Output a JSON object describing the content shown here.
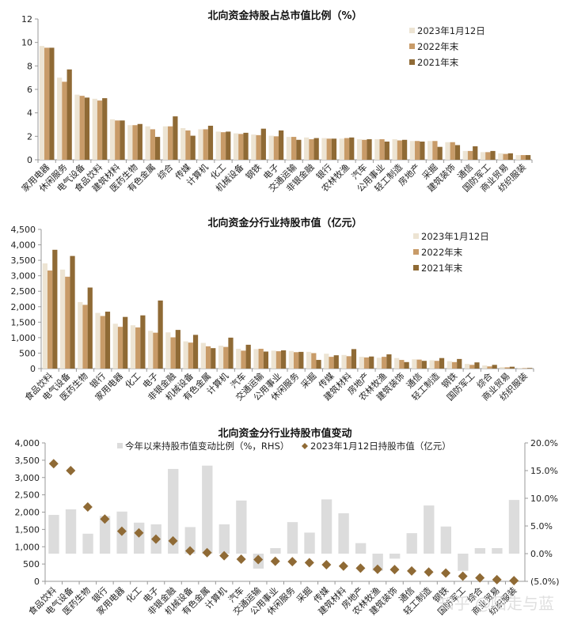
{
  "colors": {
    "c2023": "#EDE4D3",
    "c2022": "#C89B68",
    "c2021": "#8F6A35",
    "change_bar": "#DCDCDC",
    "diamond": "#8F6A35",
    "axis": "#999999"
  },
  "chart_data": [
    {
      "type": "bar",
      "title": "北向资金持股占总市值比例（%）",
      "xlabel": "",
      "ylabel": "",
      "ylim": [
        0,
        12
      ],
      "yticks": [
        "0",
        "2",
        "4",
        "6",
        "8",
        "10",
        "12"
      ],
      "legend_position": "top-right",
      "grid": false,
      "categories": [
        "家用电器",
        "休闲服务",
        "电气设备",
        "食品饮料",
        "建筑材料",
        "医药生物",
        "有色金属",
        "综合",
        "传媒",
        "计算机",
        "化工",
        "机械设备",
        "钢铁",
        "电子",
        "交通运输",
        "非银金融",
        "银行",
        "农林牧渔",
        "汽车",
        "公用事业",
        "轻工制造",
        "房地产",
        "采掘",
        "建筑装饰",
        "通信",
        "国防军工",
        "商业贸易",
        "纺织服装"
      ],
      "series": [
        {
          "name": "2023年1月12日",
          "values": [
            9.7,
            7.0,
            5.55,
            5.2,
            3.45,
            2.95,
            2.85,
            2.85,
            2.7,
            2.6,
            2.4,
            2.25,
            2.15,
            2.05,
            1.95,
            1.9,
            1.85,
            1.8,
            1.75,
            1.75,
            1.75,
            1.6,
            1.6,
            1.5,
            0.75,
            0.65,
            0.55,
            0.4
          ]
        },
        {
          "name": "2022年末",
          "values": [
            9.55,
            6.65,
            5.45,
            5.05,
            3.35,
            2.95,
            2.6,
            2.85,
            2.5,
            2.6,
            2.35,
            2.2,
            2.1,
            2.0,
            1.95,
            1.75,
            1.8,
            1.85,
            1.7,
            1.75,
            1.65,
            1.6,
            1.6,
            1.5,
            0.75,
            0.65,
            0.5,
            0.4
          ]
        },
        {
          "name": "2021年末",
          "values": [
            9.55,
            7.7,
            5.3,
            5.25,
            3.35,
            3.05,
            1.95,
            3.7,
            2.05,
            2.9,
            2.4,
            2.3,
            2.65,
            2.5,
            1.7,
            1.85,
            1.8,
            1.9,
            1.75,
            1.55,
            1.7,
            1.55,
            1.1,
            1.25,
            1.15,
            0.75,
            0.55,
            0.4
          ]
        }
      ]
    },
    {
      "type": "bar",
      "title": "北向资金分行业持股市值（亿元）",
      "xlabel": "",
      "ylabel": "",
      "ylim": [
        0,
        4500
      ],
      "yticks": [
        "0",
        "500",
        "1,000",
        "1,500",
        "2,000",
        "2,500",
        "3,000",
        "3,500",
        "4,000",
        "4,500"
      ],
      "legend_position": "top-right",
      "grid": false,
      "categories": [
        "食品饮料",
        "电气设备",
        "医药生物",
        "银行",
        "家用电器",
        "化工",
        "电子",
        "非银金融",
        "机械设备",
        "有色金属",
        "计算机",
        "汽车",
        "交通运输",
        "公用事业",
        "休闲服务",
        "采掘",
        "传媒",
        "建筑材料",
        "房地产",
        "农林牧渔",
        "建筑装饰",
        "通信",
        "轻工制造",
        "钢铁",
        "国防军工",
        "综合",
        "商业贸易",
        "纺织服装"
      ],
      "series": [
        {
          "name": "2023年1月12日",
          "values": [
            3400,
            3200,
            2150,
            1800,
            1450,
            1400,
            1220,
            1170,
            880,
            830,
            740,
            640,
            630,
            580,
            570,
            540,
            480,
            440,
            380,
            350,
            340,
            300,
            270,
            240,
            150,
            100,
            50,
            20
          ]
        },
        {
          "name": "2022年末",
          "values": [
            3170,
            2970,
            2060,
            1700,
            1350,
            1330,
            1160,
            1010,
            840,
            720,
            700,
            580,
            640,
            560,
            530,
            500,
            380,
            400,
            360,
            380,
            280,
            290,
            250,
            210,
            120,
            70,
            40,
            15
          ]
        },
        {
          "name": "2021年末",
          "values": [
            3840,
            3640,
            2620,
            1840,
            1670,
            1720,
            2200,
            1250,
            1090,
            660,
            1000,
            770,
            550,
            590,
            540,
            280,
            430,
            630,
            390,
            460,
            210,
            250,
            340,
            310,
            200,
            120,
            60,
            20
          ]
        }
      ]
    },
    {
      "type": "bar",
      "title": "北向资金分行业持股市值变动",
      "xlabel": "",
      "ylabel": "",
      "ylim": [
        0,
        4000
      ],
      "ylim_right": [
        -5.0,
        20.0
      ],
      "yticks": [
        "0",
        "500",
        "1,000",
        "1,500",
        "2,000",
        "2,500",
        "3,000",
        "3,500",
        "4,000"
      ],
      "yticks_right": [
        "(5.0%)",
        "0.0%",
        "5.0%",
        "10.0%",
        "15.0%",
        "20.0%"
      ],
      "legend_position": "top",
      "grid": false,
      "categories": [
        "食品饮料",
        "电气设备",
        "医药生物",
        "银行",
        "家用电器",
        "化工",
        "电子",
        "非银金融",
        "机械设备",
        "有色金属",
        "计算机",
        "汽车",
        "交通运输",
        "公用事业",
        "休闲服务",
        "采掘",
        "传媒",
        "建筑材料",
        "房地产",
        "农林牧渔",
        "建筑装饰",
        "通信",
        "轻工制造",
        "钢铁",
        "国防军工",
        "综合",
        "商业贸易",
        "纺织服装"
      ],
      "series": [
        {
          "name": "今年以来持股市值变动比例（%，RHS）",
          "kind": "bar",
          "axis": "right",
          "values": [
            7.0,
            8.0,
            3.6,
            6.8,
            7.6,
            5.6,
            5.3,
            15.3,
            4.8,
            15.9,
            5.3,
            9.6,
            -2.7,
            1.0,
            5.7,
            3.8,
            9.8,
            7.3,
            1.9,
            -3.1,
            -0.9,
            3.7,
            8.7,
            4.9,
            -3.1,
            1.0,
            1.0,
            9.7
          ]
        },
        {
          "name": "2023年1月12日持股市值（亿元）",
          "kind": "scatter",
          "axis": "left",
          "values": [
            3400,
            3200,
            2150,
            1800,
            1450,
            1400,
            1220,
            1170,
            880,
            830,
            740,
            640,
            630,
            580,
            570,
            540,
            480,
            440,
            380,
            350,
            340,
            300,
            270,
            240,
            150,
            100,
            50,
            20
          ]
        }
      ]
    }
  ],
  "watermark": "知乎 @陌走与蓝"
}
